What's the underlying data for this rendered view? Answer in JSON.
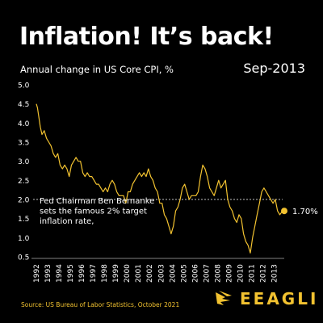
{
  "header": {
    "title": "Inflation! It’s back!",
    "subtitle": "Annual change in US Core CPI, %",
    "date": "Sep-2013"
  },
  "footer": {
    "source": "Source: US Bureau of Labor Statistics, October 2021",
    "brand": "EEAGLI"
  },
  "colors": {
    "background": "#000000",
    "line": "#f2c230",
    "text": "#ffffff",
    "accent": "#f2c230"
  },
  "chart_data": {
    "type": "line",
    "title": "",
    "xlabel": "",
    "ylabel": "",
    "ylim": [
      0.5,
      5.0
    ],
    "xlim": [
      1992.0,
      2013.75
    ],
    "yticks": [
      "0.5",
      "1.0",
      "1.5",
      "2.0",
      "2.5",
      "3.0",
      "3.5",
      "4.0",
      "4.5",
      "5.0"
    ],
    "xticks": [
      "1992",
      "1993",
      "1994",
      "1995",
      "1996",
      "1997",
      "1998",
      "1999",
      "2000",
      "2001",
      "2002",
      "2003",
      "2004",
      "2005",
      "2006",
      "2007",
      "2008",
      "2009",
      "2010",
      "2011",
      "2012",
      "2013"
    ],
    "grid": false,
    "reference_line": {
      "value": 2.0,
      "style": "dashed"
    },
    "annotation": "Fed Chairman Ben Bernanke sets the famous 2% target inflation rate,",
    "end_label": "1.70%",
    "series": [
      {
        "x": [
          1992.0,
          1992.1,
          1992.2,
          1992.35,
          1992.5,
          1992.7,
          1992.9,
          1993.1,
          1993.3,
          1993.5,
          1993.7,
          1993.9,
          1994.1,
          1994.3,
          1994.5,
          1994.7,
          1994.9,
          1995.1,
          1995.3,
          1995.5,
          1995.7,
          1995.9,
          1996.1,
          1996.3,
          1996.5,
          1996.7,
          1996.9,
          1997.1,
          1997.3,
          1997.5,
          1997.7,
          1997.9,
          1998.1,
          1998.3,
          1998.5,
          1998.7,
          1998.9,
          1999.1,
          1999.3,
          1999.5,
          1999.7,
          1999.9,
          2000.1,
          2000.3,
          2000.5,
          2000.7,
          2000.9,
          2001.1,
          2001.3,
          2001.5,
          2001.7,
          2001.9,
          2002.1,
          2002.3,
          2002.5,
          2002.7,
          2002.9,
          2003.1,
          2003.3,
          2003.5,
          2003.7,
          2003.9,
          2004.1,
          2004.3,
          2004.5,
          2004.7,
          2004.9,
          2005.1,
          2005.3,
          2005.5,
          2005.7,
          2005.9,
          2006.1,
          2006.3,
          2006.5,
          2006.7,
          2006.9,
          2007.1,
          2007.3,
          2007.5,
          2007.7,
          2007.9,
          2008.1,
          2008.3,
          2008.5,
          2008.7,
          2008.9,
          2009.1,
          2009.3,
          2009.5,
          2009.7,
          2009.9,
          2010.1,
          2010.3,
          2010.5,
          2010.7,
          2010.9,
          2011.1,
          2011.3,
          2011.5,
          2011.7,
          2011.9,
          2012.1,
          2012.3,
          2012.5,
          2012.7,
          2012.9,
          2013.1,
          2013.3,
          2013.5,
          2013.75
        ],
        "y": [
          4.5,
          4.4,
          4.2,
          3.9,
          3.7,
          3.8,
          3.6,
          3.5,
          3.4,
          3.2,
          3.1,
          3.2,
          2.9,
          2.8,
          2.9,
          2.8,
          2.6,
          2.9,
          3.0,
          3.1,
          3.0,
          3.0,
          2.7,
          2.6,
          2.7,
          2.6,
          2.6,
          2.5,
          2.4,
          2.4,
          2.3,
          2.2,
          2.3,
          2.2,
          2.4,
          2.5,
          2.4,
          2.2,
          2.1,
          2.1,
          2.1,
          1.9,
          2.2,
          2.2,
          2.4,
          2.5,
          2.6,
          2.7,
          2.6,
          2.7,
          2.6,
          2.8,
          2.6,
          2.5,
          2.3,
          2.2,
          1.9,
          1.9,
          1.6,
          1.5,
          1.3,
          1.1,
          1.3,
          1.7,
          1.8,
          2.0,
          2.3,
          2.4,
          2.2,
          2.0,
          2.1,
          2.1,
          2.1,
          2.2,
          2.6,
          2.9,
          2.8,
          2.6,
          2.3,
          2.2,
          2.1,
          2.3,
          2.5,
          2.3,
          2.4,
          2.5,
          2.0,
          1.8,
          1.7,
          1.5,
          1.4,
          1.6,
          1.5,
          1.1,
          0.9,
          0.8,
          0.6,
          1.0,
          1.3,
          1.6,
          1.9,
          2.2,
          2.3,
          2.2,
          2.1,
          2.0,
          1.9,
          2.0,
          1.7,
          1.6,
          1.7
        ]
      }
    ]
  }
}
